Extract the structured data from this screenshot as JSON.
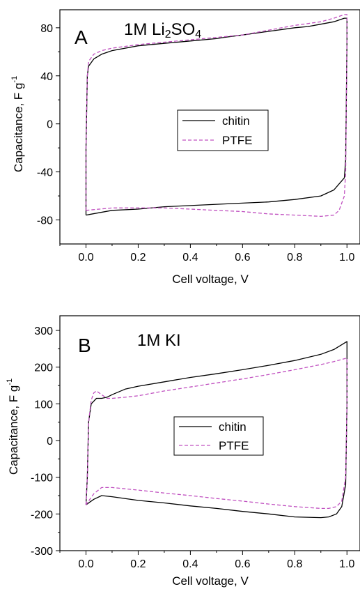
{
  "chart_data": [
    {
      "type": "line",
      "panel_letter": "A",
      "electrolyte_label": {
        "main": "1M Li",
        "sub1": "2",
        "mid": "SO",
        "sub2": "4"
      },
      "xlabel": "Cell voltage, V",
      "ylabel": {
        "main": "Capacitance, F g",
        "sup": "-1"
      },
      "xlim": [
        -0.1,
        1.05
      ],
      "ylim": [
        -100,
        95
      ],
      "xticks": [
        0.0,
        0.2,
        0.4,
        0.6,
        0.8,
        1.0
      ],
      "xtick_labels": [
        "0.0",
        "0.2",
        "0.4",
        "0.6",
        "0.8",
        "1.0"
      ],
      "yticks": [
        -80,
        -40,
        0,
        40,
        80
      ],
      "ytick_labels": [
        "-80",
        "-40",
        "0",
        "40",
        "80"
      ],
      "legend_position": "center",
      "series": [
        {
          "name": "chitin",
          "color": "#000000",
          "dash": "solid",
          "points": [
            [
              0.0,
              -76
            ],
            [
              0.0,
              -20
            ],
            [
              0.005,
              40
            ],
            [
              0.01,
              48
            ],
            [
              0.03,
              54
            ],
            [
              0.06,
              58
            ],
            [
              0.1,
              61
            ],
            [
              0.2,
              65
            ],
            [
              0.3,
              67
            ],
            [
              0.4,
              69
            ],
            [
              0.5,
              71
            ],
            [
              0.53,
              72
            ],
            [
              0.6,
              74
            ],
            [
              0.7,
              77
            ],
            [
              0.8,
              80
            ],
            [
              0.85,
              81
            ],
            [
              0.9,
              83
            ],
            [
              0.95,
              85
            ],
            [
              0.99,
              88
            ],
            [
              1.0,
              88
            ],
            [
              1.0,
              70
            ],
            [
              0.995,
              -30
            ],
            [
              0.99,
              -45
            ],
            [
              0.97,
              -50
            ],
            [
              0.95,
              -55
            ],
            [
              0.9,
              -60
            ],
            [
              0.8,
              -63
            ],
            [
              0.7,
              -65
            ],
            [
              0.6,
              -66
            ],
            [
              0.5,
              -67
            ],
            [
              0.4,
              -68
            ],
            [
              0.3,
              -69
            ],
            [
              0.2,
              -71
            ],
            [
              0.1,
              -72
            ],
            [
              0.0,
              -76
            ]
          ]
        },
        {
          "name": "PTFE",
          "color": "#c050c0",
          "dash": "dashed",
          "points": [
            [
              0.0,
              -72
            ],
            [
              0.0,
              -20
            ],
            [
              0.005,
              40
            ],
            [
              0.01,
              52
            ],
            [
              0.03,
              58
            ],
            [
              0.06,
              61
            ],
            [
              0.1,
              63
            ],
            [
              0.2,
              66
            ],
            [
              0.3,
              68
            ],
            [
              0.4,
              70
            ],
            [
              0.5,
              72
            ],
            [
              0.6,
              74
            ],
            [
              0.7,
              78
            ],
            [
              0.8,
              82
            ],
            [
              0.9,
              85
            ],
            [
              0.95,
              88
            ],
            [
              0.99,
              91
            ],
            [
              1.0,
              91
            ],
            [
              1.0,
              70
            ],
            [
              0.995,
              -40
            ],
            [
              0.99,
              -60
            ],
            [
              0.97,
              -72
            ],
            [
              0.95,
              -76
            ],
            [
              0.9,
              -77
            ],
            [
              0.8,
              -76
            ],
            [
              0.7,
              -75
            ],
            [
              0.6,
              -73
            ],
            [
              0.5,
              -72
            ],
            [
              0.4,
              -71
            ],
            [
              0.3,
              -70
            ],
            [
              0.2,
              -70
            ],
            [
              0.1,
              -70
            ],
            [
              0.0,
              -72
            ]
          ]
        }
      ]
    },
    {
      "type": "line",
      "panel_letter": "B",
      "electrolyte_label": {
        "main": "1M KI"
      },
      "xlabel": "Cell voltage, V",
      "ylabel": {
        "main": "Capacitance, F g",
        "sup": "-1"
      },
      "xlim": [
        -0.1,
        1.05
      ],
      "ylim": [
        -300,
        340
      ],
      "xticks": [
        0.0,
        0.2,
        0.4,
        0.6,
        0.8,
        1.0
      ],
      "xtick_labels": [
        "0.0",
        "0.2",
        "0.4",
        "0.6",
        "0.8",
        "1.0"
      ],
      "yticks": [
        -300,
        -200,
        -100,
        0,
        100,
        200,
        300
      ],
      "ytick_labels": [
        "-300",
        "-200",
        "-100",
        "0",
        "100",
        "200",
        "300"
      ],
      "legend_position": "center",
      "series": [
        {
          "name": "chitin",
          "color": "#000000",
          "dash": "solid",
          "points": [
            [
              0.0,
              -175
            ],
            [
              0.005,
              -100
            ],
            [
              0.01,
              50
            ],
            [
              0.02,
              100
            ],
            [
              0.04,
              115
            ],
            [
              0.06,
              115
            ],
            [
              0.08,
              118
            ],
            [
              0.1,
              125
            ],
            [
              0.15,
              140
            ],
            [
              0.2,
              148
            ],
            [
              0.3,
              160
            ],
            [
              0.4,
              172
            ],
            [
              0.5,
              182
            ],
            [
              0.6,
              193
            ],
            [
              0.7,
              205
            ],
            [
              0.8,
              218
            ],
            [
              0.9,
              235
            ],
            [
              0.95,
              248
            ],
            [
              1.0,
              270
            ],
            [
              1.0,
              100
            ],
            [
              0.995,
              -120
            ],
            [
              0.98,
              -180
            ],
            [
              0.96,
              -200
            ],
            [
              0.93,
              -208
            ],
            [
              0.9,
              -210
            ],
            [
              0.8,
              -208
            ],
            [
              0.7,
              -200
            ],
            [
              0.6,
              -193
            ],
            [
              0.5,
              -185
            ],
            [
              0.4,
              -178
            ],
            [
              0.3,
              -170
            ],
            [
              0.2,
              -163
            ],
            [
              0.1,
              -153
            ],
            [
              0.06,
              -150
            ],
            [
              0.03,
              -160
            ],
            [
              0.0,
              -175
            ]
          ]
        },
        {
          "name": "PTFE",
          "color": "#c050c0",
          "dash": "dashed",
          "points": [
            [
              0.0,
              -175
            ],
            [
              0.005,
              -100
            ],
            [
              0.01,
              50
            ],
            [
              0.02,
              110
            ],
            [
              0.03,
              130
            ],
            [
              0.04,
              135
            ],
            [
              0.06,
              125
            ],
            [
              0.08,
              115
            ],
            [
              0.1,
              115
            ],
            [
              0.15,
              118
            ],
            [
              0.2,
              122
            ],
            [
              0.3,
              135
            ],
            [
              0.4,
              146
            ],
            [
              0.5,
              157
            ],
            [
              0.6,
              168
            ],
            [
              0.7,
              180
            ],
            [
              0.8,
              193
            ],
            [
              0.9,
              207
            ],
            [
              0.95,
              215
            ],
            [
              1.0,
              225
            ],
            [
              1.0,
              100
            ],
            [
              0.995,
              -100
            ],
            [
              0.98,
              -165
            ],
            [
              0.96,
              -180
            ],
            [
              0.93,
              -185
            ],
            [
              0.9,
              -185
            ],
            [
              0.8,
              -180
            ],
            [
              0.7,
              -173
            ],
            [
              0.6,
              -165
            ],
            [
              0.5,
              -158
            ],
            [
              0.4,
              -150
            ],
            [
              0.3,
              -143
            ],
            [
              0.2,
              -135
            ],
            [
              0.1,
              -128
            ],
            [
              0.06,
              -128
            ],
            [
              0.03,
              -145
            ],
            [
              0.0,
              -175
            ]
          ]
        }
      ]
    }
  ]
}
